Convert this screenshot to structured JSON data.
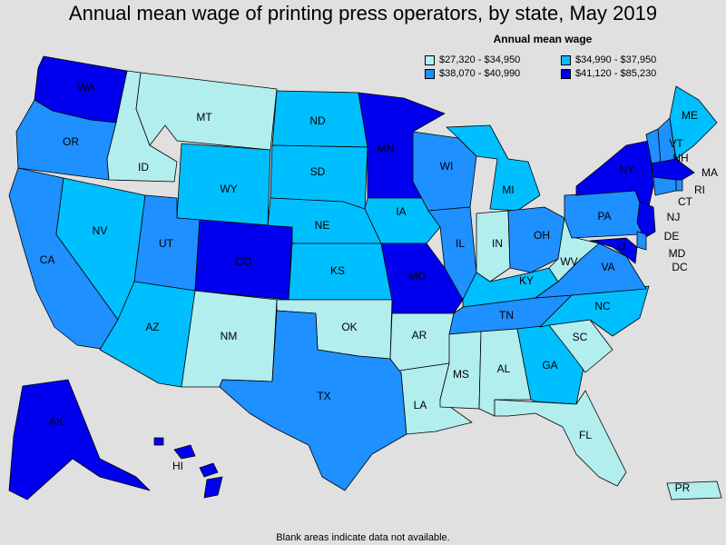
{
  "title": "Annual mean wage of printing press operators, by state, May 2019",
  "legend": {
    "title": "Annual mean wage",
    "items": [
      {
        "label": "$27,320 - $34,950",
        "color": "#b2eeee"
      },
      {
        "label": "$34,990 - $37,950",
        "color": "#00bfff"
      },
      {
        "label": "$38,070 - $40,990",
        "color": "#1e90ff"
      },
      {
        "label": "$41,120 - $85,230",
        "color": "#0000ee"
      }
    ]
  },
  "footnote": "Blank areas indicate data not available.",
  "states": {
    "WA": {
      "label": "WA",
      "tier": 4
    },
    "OR": {
      "label": "OR",
      "tier": 3
    },
    "CA": {
      "label": "CA",
      "tier": 3
    },
    "ID": {
      "label": "ID",
      "tier": 1
    },
    "NV": {
      "label": "NV",
      "tier": 2
    },
    "MT": {
      "label": "MT",
      "tier": 1
    },
    "WY": {
      "label": "WY",
      "tier": 2
    },
    "UT": {
      "label": "UT",
      "tier": 3
    },
    "AZ": {
      "label": "AZ",
      "tier": 2
    },
    "CO": {
      "label": "CO",
      "tier": 4
    },
    "NM": {
      "label": "NM",
      "tier": 1
    },
    "ND": {
      "label": "ND",
      "tier": 2
    },
    "SD": {
      "label": "SD",
      "tier": 2
    },
    "NE": {
      "label": "NE",
      "tier": 2
    },
    "KS": {
      "label": "KS",
      "tier": 2
    },
    "OK": {
      "label": "OK",
      "tier": 1
    },
    "TX": {
      "label": "TX",
      "tier": 3
    },
    "MN": {
      "label": "MN",
      "tier": 4
    },
    "IA": {
      "label": "IA",
      "tier": 2
    },
    "MO": {
      "label": "MO",
      "tier": 4
    },
    "AR": {
      "label": "AR",
      "tier": 1
    },
    "LA": {
      "label": "LA",
      "tier": 1
    },
    "WI": {
      "label": "WI",
      "tier": 3
    },
    "IL": {
      "label": "IL",
      "tier": 3
    },
    "MI": {
      "label": "MI",
      "tier": 2
    },
    "IN": {
      "label": "IN",
      "tier": 1
    },
    "OH": {
      "label": "OH",
      "tier": 3
    },
    "KY": {
      "label": "KY",
      "tier": 2
    },
    "TN": {
      "label": "TN",
      "tier": 3
    },
    "MS": {
      "label": "MS",
      "tier": 1
    },
    "AL": {
      "label": "AL",
      "tier": 1
    },
    "GA": {
      "label": "GA",
      "tier": 2
    },
    "FL": {
      "label": "FL",
      "tier": 1
    },
    "SC": {
      "label": "SC",
      "tier": 1
    },
    "NC": {
      "label": "NC",
      "tier": 2
    },
    "VA": {
      "label": "VA",
      "tier": 3
    },
    "WV": {
      "label": "WV",
      "tier": 1
    },
    "PA": {
      "label": "PA",
      "tier": 3
    },
    "NY": {
      "label": "NY",
      "tier": 4
    },
    "VT": {
      "label": "VT",
      "tier": 3
    },
    "NH": {
      "label": "NH",
      "tier": 3
    },
    "ME": {
      "label": "ME",
      "tier": 2
    },
    "MA": {
      "label": "MA",
      "tier": 4
    },
    "RI": {
      "label": "RI",
      "tier": 3
    },
    "CT": {
      "label": "CT",
      "tier": 3
    },
    "NJ": {
      "label": "NJ",
      "tier": 4
    },
    "DE": {
      "label": "DE",
      "tier": 3
    },
    "MD": {
      "label": "MD",
      "tier": 4
    },
    "DC": {
      "label": "DC",
      "tier": 4
    },
    "AK": {
      "label": "AK",
      "tier": 4
    },
    "HI": {
      "label": "HI",
      "tier": 4
    },
    "PR": {
      "label": "PR",
      "tier": 1
    }
  }
}
